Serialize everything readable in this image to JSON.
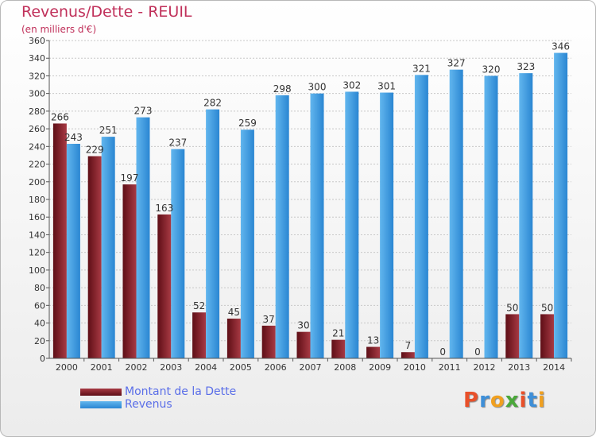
{
  "header": {
    "title": "Revenus/Dette - REUIL",
    "subtitle": "(en milliers d'€)"
  },
  "legend": {
    "items": [
      {
        "label": "Montant de la Dette",
        "color": "#7a1c24"
      },
      {
        "label": "Revenus",
        "color": "#3d9be0"
      }
    ]
  },
  "logo": {
    "text": "Proxiti",
    "colors": [
      "#e8502a",
      "#3e8fd8",
      "#f0a020",
      "#4aa83a",
      "#e8502a",
      "#3e8fd8",
      "#f0a020"
    ]
  },
  "colors": {
    "dette_dark": "#5e0e16",
    "dette_light": "#a83a44",
    "revenus_dark": "#2a86d2",
    "revenus_light": "#62b6ee",
    "grid": "#c8c8c8",
    "axis": "#555555",
    "label": "#333333"
  },
  "chart_data": {
    "type": "bar",
    "title": "Revenus/Dette - REUIL",
    "subtitle": "(en milliers d'€)",
    "categories": [
      "2000",
      "2001",
      "2002",
      "2003",
      "2004",
      "2005",
      "2006",
      "2007",
      "2008",
      "2009",
      "2010",
      "2011",
      "2012",
      "2013",
      "2014"
    ],
    "series": [
      {
        "name": "Montant de la Dette",
        "values": [
          266,
          229,
          197,
          163,
          52,
          45,
          37,
          30,
          21,
          13,
          7,
          0,
          0,
          50,
          50
        ]
      },
      {
        "name": "Revenus",
        "values": [
          243,
          251,
          273,
          237,
          282,
          259,
          298,
          300,
          302,
          301,
          321,
          327,
          320,
          323,
          346
        ]
      }
    ],
    "ylim": [
      0,
      360
    ],
    "yticks": [
      0,
      20,
      40,
      60,
      80,
      100,
      120,
      140,
      160,
      180,
      200,
      220,
      240,
      260,
      280,
      300,
      320,
      340,
      360
    ],
    "grid": true,
    "legend_position": "bottom-left"
  }
}
